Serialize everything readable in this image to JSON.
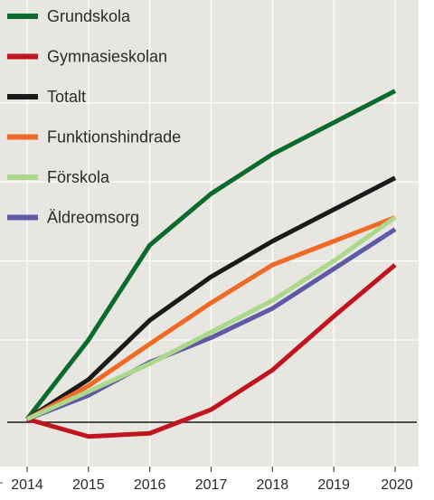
{
  "chart_data": {
    "type": "line",
    "title": "",
    "xlabel": "",
    "ylabel": "",
    "x": [
      "2014",
      "2015",
      "2016",
      "2017",
      "2018",
      "2019",
      "2020"
    ],
    "ylim": [
      -0.6,
      5.3
    ],
    "grid": true,
    "legend_position": "top-left",
    "series": [
      {
        "name": "Grundskola",
        "color": "#0b6b2c",
        "values": [
          0,
          1.0,
          2.2,
          2.85,
          3.35,
          3.75,
          4.15
        ]
      },
      {
        "name": "Gymnasieskolan",
        "color": "#c0141f",
        "values": [
          0,
          -0.22,
          -0.18,
          0.12,
          0.62,
          1.3,
          1.95
        ]
      },
      {
        "name": "Totalt",
        "color": "#1a1a1a",
        "values": [
          0,
          0.5,
          1.25,
          1.8,
          2.25,
          2.65,
          3.05
        ]
      },
      {
        "name": "Funktionshindrade",
        "color": "#ee6a26",
        "values": [
          0,
          0.42,
          0.95,
          1.47,
          1.95,
          2.25,
          2.55
        ]
      },
      {
        "name": "Förskola",
        "color": "#abd88a",
        "values": [
          0,
          0.35,
          0.7,
          1.1,
          1.5,
          2.0,
          2.55
        ]
      },
      {
        "name": "Äldreomsorg",
        "color": "#5e5aa5",
        "values": [
          0,
          0.3,
          0.72,
          1.03,
          1.4,
          1.9,
          2.4
        ]
      }
    ]
  }
}
